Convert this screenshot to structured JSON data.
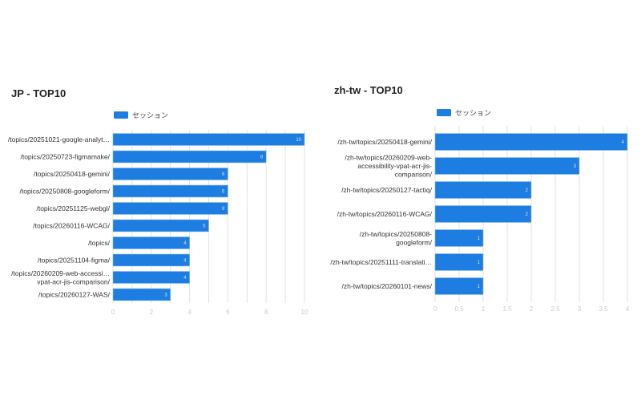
{
  "colors": {
    "bar": "#1e7de0",
    "grid": "#e3e3e3"
  },
  "chart_data": [
    {
      "type": "bar",
      "orientation": "horizontal",
      "title": "JP - TOP10",
      "legend": [
        "セッション"
      ],
      "legend_position": "top",
      "categories": [
        "/topics/20251021-google-analyt…",
        "/topics/20250723-figmamake/",
        "/topics/20250418-gemini/",
        "/topics/20250808-googleform/",
        "/topics/20251125-webgl/",
        "/topics/20260116-WCAG/",
        "/topics/",
        "/topics/20251104-figma/",
        "/topics/20260209-web-accessi…|vpat-acr-jis-comparison/",
        "/topics/20260127-WAS/"
      ],
      "series": [
        {
          "name": "セッション",
          "values": [
            10,
            8,
            6,
            6,
            6,
            5,
            4,
            4,
            4,
            3
          ]
        }
      ],
      "xlim": [
        0,
        10
      ],
      "ticks": [
        "0",
        "2",
        "4",
        "6",
        "8",
        "10"
      ],
      "grid": true
    },
    {
      "type": "bar",
      "orientation": "horizontal",
      "title": "zh-tw - TOP10",
      "legend": [
        "セッション"
      ],
      "legend_position": "top",
      "categories": [
        "/zh-tw/topics/20250418-gemini/",
        "/zh-tw/topics/20260209-web-|accessibility-vpat-acr-jis-|comparison/",
        "/zh-tw/topics/20250127-tactiq/",
        "/zh-tw/topics/20260116-WCAG/",
        "/zh-tw/topics/20250808-|googleform/",
        "/zh-tw/topics/20251111-translati…",
        "/zh-tw/topics/20260101-news/"
      ],
      "series": [
        {
          "name": "セッション",
          "values": [
            4,
            3,
            2,
            2,
            1,
            1,
            1
          ]
        }
      ],
      "xlim": [
        0,
        4
      ],
      "ticks": [
        "0",
        "0.5",
        "1",
        "1.5",
        "2",
        "2.5",
        "3",
        "3.5",
        "4"
      ],
      "grid": true
    }
  ]
}
